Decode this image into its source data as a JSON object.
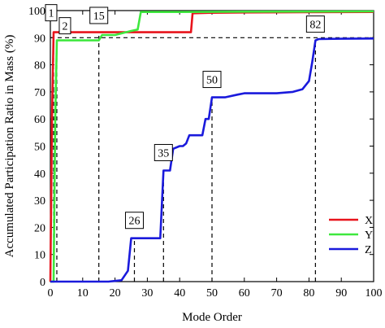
{
  "chart_data": {
    "type": "line",
    "title": "",
    "xlabel": "Mode Order",
    "ylabel": "Accumulated Participation Ratio in Mass (%)",
    "xlim": [
      0,
      100
    ],
    "ylim": [
      0,
      100
    ],
    "x_ticks": [
      0,
      10,
      20,
      30,
      40,
      50,
      60,
      70,
      80,
      90,
      100
    ],
    "y_ticks": [
      0,
      10,
      20,
      30,
      40,
      50,
      60,
      70,
      80,
      90,
      100
    ],
    "grid": false,
    "legend_position": "bottom-right",
    "reference_line_y": 90,
    "series": [
      {
        "name": "X",
        "color": "#e8141c",
        "points": [
          [
            0,
            0
          ],
          [
            0.5,
            60
          ],
          [
            1,
            92
          ],
          [
            2,
            92
          ],
          [
            10,
            92
          ],
          [
            20,
            92
          ],
          [
            30,
            92
          ],
          [
            40,
            92
          ],
          [
            43.5,
            92
          ],
          [
            44,
            99
          ],
          [
            50,
            99.2
          ],
          [
            60,
            99.3
          ],
          [
            80,
            99.4
          ],
          [
            100,
            99.5
          ]
        ]
      },
      {
        "name": "Y",
        "color": "#3ee83e",
        "points": [
          [
            0,
            0
          ],
          [
            1,
            0
          ],
          [
            1.5,
            60
          ],
          [
            2,
            89
          ],
          [
            5,
            89
          ],
          [
            10,
            89
          ],
          [
            15,
            89
          ],
          [
            16,
            91
          ],
          [
            20,
            91
          ],
          [
            25,
            92.5
          ],
          [
            27,
            93
          ],
          [
            28,
            99.5
          ],
          [
            40,
            99.5
          ],
          [
            60,
            99.6
          ],
          [
            100,
            99.7
          ]
        ]
      },
      {
        "name": "Z",
        "color": "#1a1adc",
        "points": [
          [
            0,
            0
          ],
          [
            10,
            0
          ],
          [
            18,
            0
          ],
          [
            22,
            0.5
          ],
          [
            24,
            4
          ],
          [
            25,
            16
          ],
          [
            26,
            16
          ],
          [
            30,
            16
          ],
          [
            34,
            16
          ],
          [
            35,
            41
          ],
          [
            36,
            41
          ],
          [
            37,
            41
          ],
          [
            38,
            49
          ],
          [
            40,
            50
          ],
          [
            41,
            50
          ],
          [
            42,
            51
          ],
          [
            43,
            54
          ],
          [
            47,
            54
          ],
          [
            48,
            60
          ],
          [
            49,
            60
          ],
          [
            50,
            68
          ],
          [
            52,
            68
          ],
          [
            54,
            68
          ],
          [
            58,
            69
          ],
          [
            60,
            69.5
          ],
          [
            70,
            69.5
          ],
          [
            75,
            70
          ],
          [
            78,
            71
          ],
          [
            80,
            74
          ],
          [
            81,
            81
          ],
          [
            82,
            89
          ],
          [
            83,
            89.5
          ],
          [
            90,
            89.6
          ],
          [
            100,
            89.7
          ]
        ]
      }
    ],
    "annotations": [
      {
        "label": "1",
        "x": 1,
        "y": 92
      },
      {
        "label": "2",
        "x": 2,
        "y": 89
      },
      {
        "label": "15",
        "x": 15,
        "y": 91
      },
      {
        "label": "26",
        "x": 26,
        "y": 16
      },
      {
        "label": "35",
        "x": 35,
        "y": 41
      },
      {
        "label": "50",
        "x": 50,
        "y": 68
      },
      {
        "label": "82",
        "x": 82,
        "y": 89
      }
    ],
    "legend": [
      {
        "label": "X",
        "color": "#e8141c"
      },
      {
        "label": "Y",
        "color": "#3ee83e"
      },
      {
        "label": "Z",
        "color": "#1a1adc"
      }
    ]
  }
}
